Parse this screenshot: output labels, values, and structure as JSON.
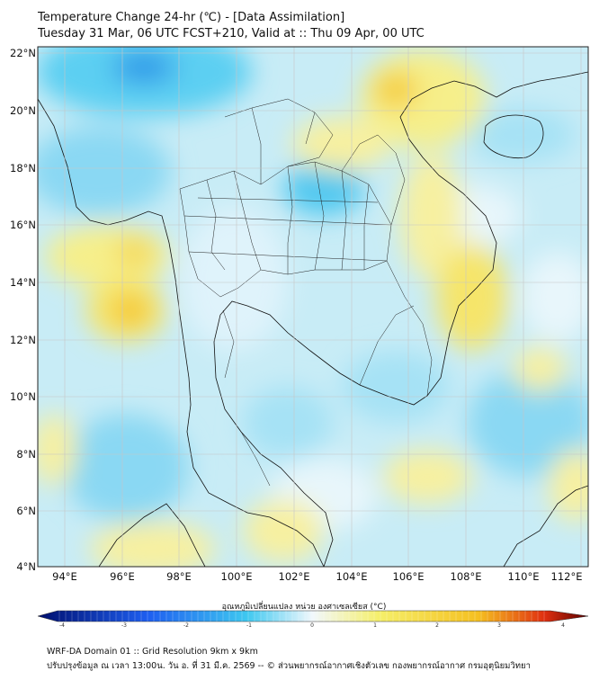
{
  "header": {
    "title_line1": "Temperature Change 24-hr (℃) - [Data Assimilation]",
    "title_line2": "Tuesday 31 Mar, 06 UTC FCST+210, Valid at :: Thu 09 Apr, 00 UTC"
  },
  "map": {
    "lat_labels": [
      "22°N",
      "20°N",
      "18°N",
      "16°N",
      "14°N",
      "12°N",
      "10°N",
      "8°N",
      "6°N",
      "4°N"
    ],
    "lon_labels": [
      "94°E",
      "96°E",
      "98°E",
      "100°E",
      "102°E",
      "104°E",
      "106°E",
      "108°E",
      "110°E",
      "112°E"
    ]
  },
  "colorbar": {
    "title": "อุณหภูมิเปลี่ยนแปลง หน่วย องศาเซลเซียส (°C)",
    "ticks": [
      "-4",
      "-3",
      "-2",
      "-1",
      "0",
      "1",
      "2",
      "3",
      "4"
    ],
    "colors": {
      "cold_extreme": "#000f6e",
      "cold": "#1e5ef0",
      "cool": "#3ec8f0",
      "neutral": "#f2f8fc",
      "mild": "#f5ef6a",
      "warm": "#f5c020",
      "hot": "#e03010",
      "hot_extreme": "#5a0000"
    }
  },
  "footer": {
    "line1": "WRF-DA Domain 01 :: Grid Resolution 9km x 9km",
    "line2": "ปรับปรุงข้อมูล ณ เวลา 13:00น. วัน อ. ที่ 31 มี.ค. 2569 -- © ส่วนพยากรณ์อากาศเชิงตัวเลข กองพยากรณ์อากาศ กรมอุตุนิยมวิทยา"
  }
}
